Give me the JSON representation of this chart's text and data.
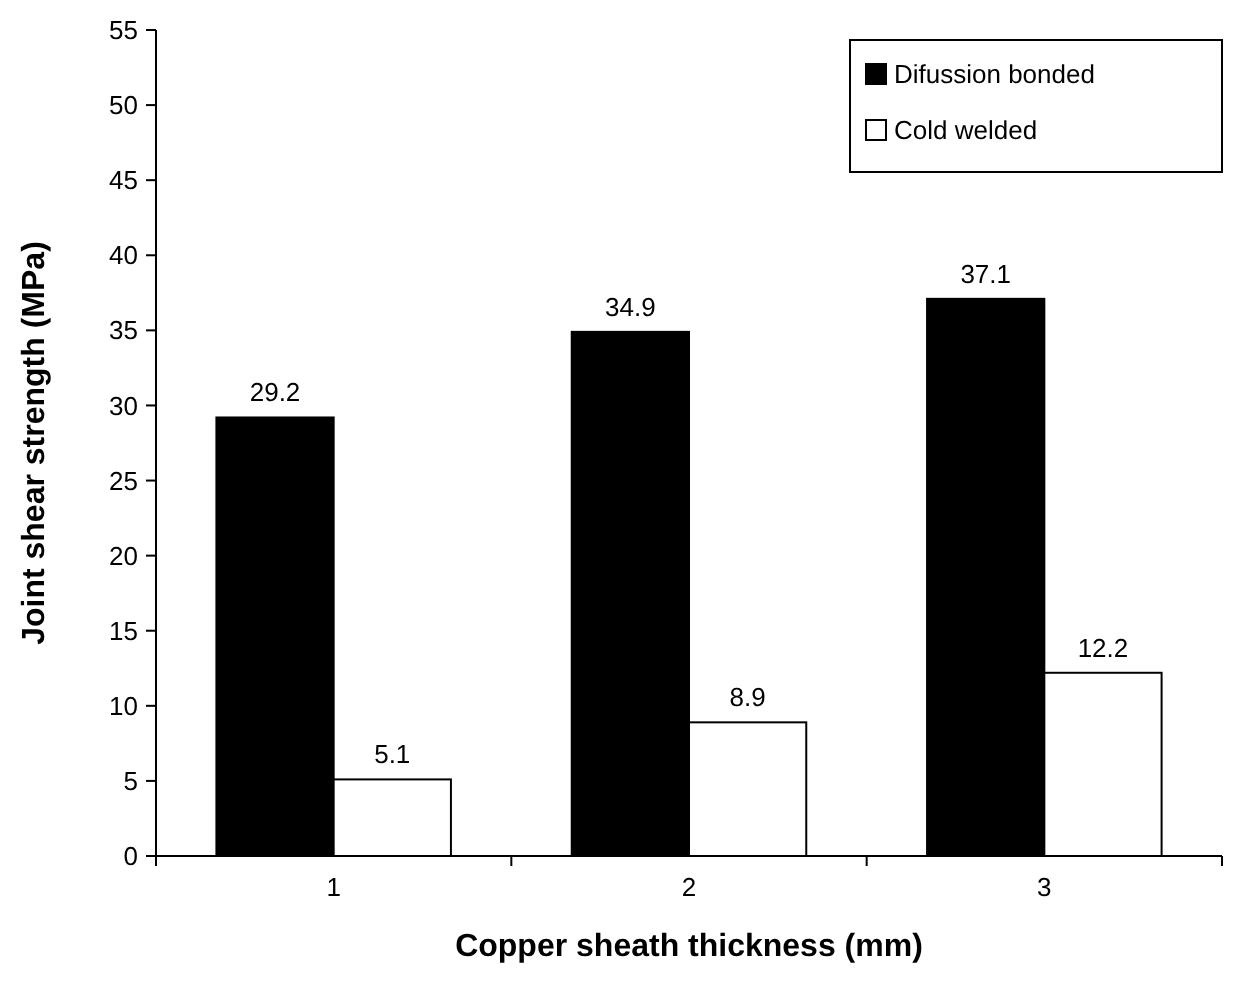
{
  "chart_data": {
    "type": "bar",
    "xlabel": "Copper sheath thickness (mm)",
    "ylabel": "Joint shear strength (MPa)",
    "categories": [
      "1",
      "2",
      "3"
    ],
    "series": [
      {
        "name": "Difussion bonded",
        "color": "#000000",
        "values": [
          29.2,
          34.9,
          37.1
        ]
      },
      {
        "name": "Cold welded",
        "color": "#ffffff",
        "values": [
          5.1,
          8.9,
          12.2
        ]
      }
    ],
    "ylim": [
      0,
      55
    ],
    "yticks": [
      0,
      5,
      10,
      15,
      20,
      25,
      30,
      35,
      40,
      45,
      50,
      55
    ],
    "grid": false,
    "legend": "top right",
    "data_labels": true
  }
}
